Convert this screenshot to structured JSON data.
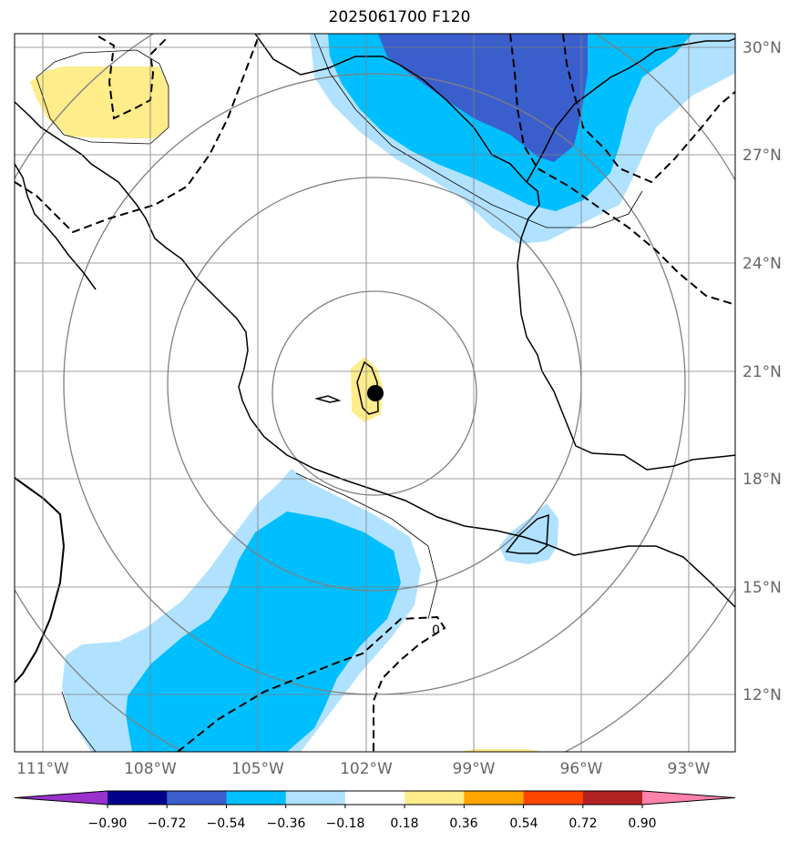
{
  "title": "2025061700 F120",
  "longitude_labels": [
    "111°W",
    "108°W",
    "105°W",
    "102°W",
    "99°W",
    "96°W",
    "93°W"
  ],
  "latitude_labels": [
    "30°N",
    "27°N",
    "24°N",
    "21°N",
    "18°N",
    "15°N",
    "12°N"
  ],
  "contour_label": "0",
  "colorbar": {
    "ticks": [
      "−0.90",
      "−0.72",
      "−0.54",
      "−0.36",
      "−0.18",
      "0.18",
      "0.36",
      "0.54",
      "0.72",
      "0.90"
    ],
    "colors": [
      "#9932cc",
      "#00008b",
      "#3a5fcd",
      "#00bfff",
      "#b0e2ff",
      "#ffffff",
      "#ffec8b",
      "#ffa500",
      "#ff4500",
      "#b22222",
      "#ff82ab"
    ]
  },
  "fill_colors": {
    "light_blue": "#b0e2ff",
    "deep_sky_blue": "#00bfff",
    "royal_blue": "#3a5fcd",
    "light_yellow": "#ffec8b"
  },
  "center_marker": "storm-center-dot"
}
